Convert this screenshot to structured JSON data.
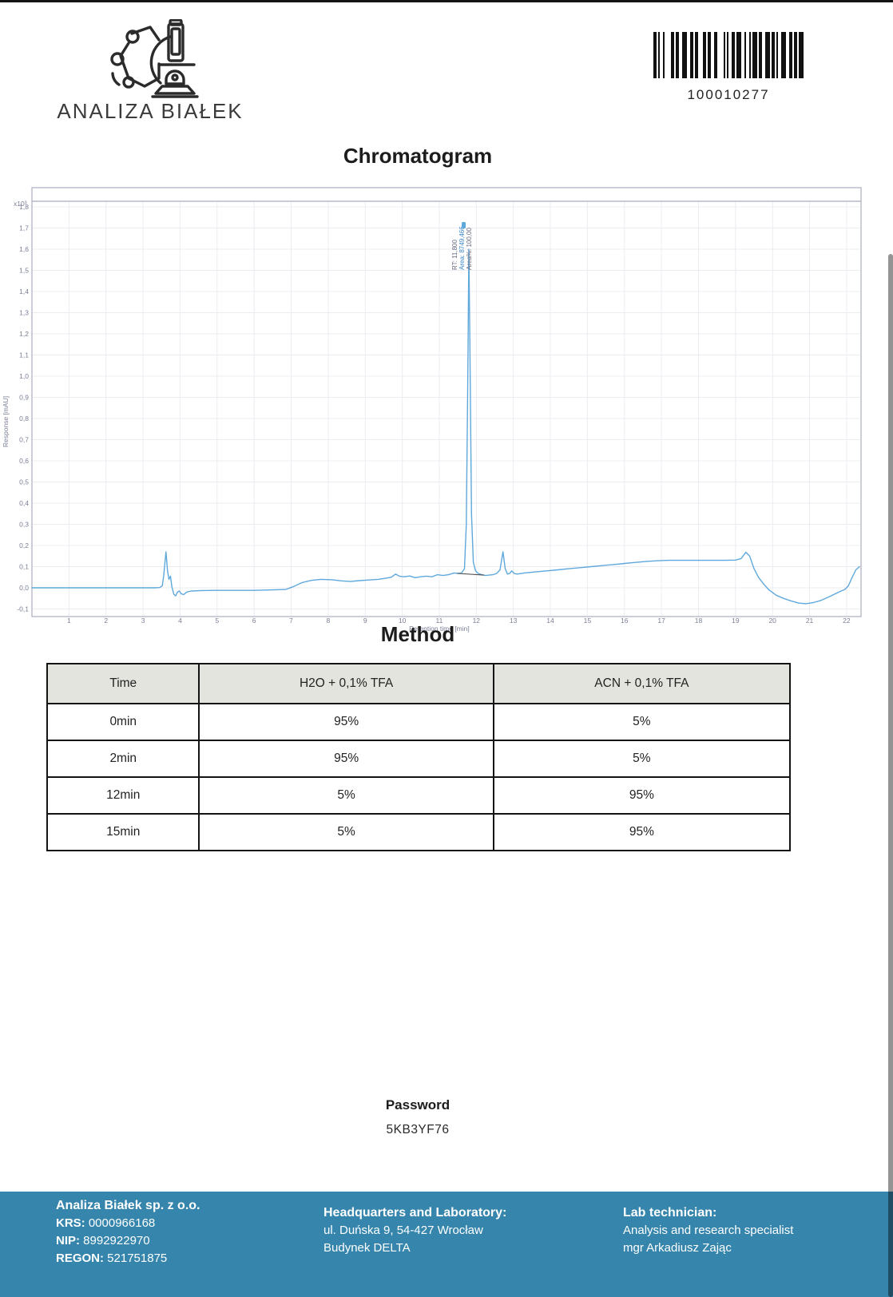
{
  "colors": {
    "trace_blue": "#5fa8dc",
    "frame_gray": "#a9adbd",
    "grid_gray": "#ebecf1",
    "tick_text": "#7a7e95",
    "footer_bg": "#3585ac",
    "table_header_bg": "#e4e4df"
  },
  "logo": {
    "text": "ANALIZA BIAŁEK",
    "icon": "microscope-molecule-icon"
  },
  "barcode": {
    "value": "100010277",
    "pattern": "1101001000011011001110011011000110110011000010100110111001001011101100111011010011100110110111"
  },
  "chart_data": {
    "type": "line",
    "title": "Chromatogram",
    "xlabel": "Retention time [min]",
    "ylabel": "Response [mAU]",
    "y_multiplier_label": "x10³",
    "xlim": [
      0,
      22.4
    ],
    "ylim": [
      -0.13,
      1.83
    ],
    "grid": true,
    "legend_position": "none",
    "x_ticks": [
      1,
      2,
      3,
      4,
      5,
      6,
      7,
      8,
      9,
      10,
      11,
      12,
      13,
      14,
      15,
      16,
      17,
      18,
      19,
      20,
      21,
      22
    ],
    "y_ticks": [
      1.8,
      1.7,
      1.6,
      1.5,
      1.4,
      1.3,
      1.2,
      1.1,
      1.0,
      0.9,
      0.8,
      0.7,
      0.6,
      0.5,
      0.4,
      0.3,
      0.2,
      0.1,
      0.0,
      -0.1
    ],
    "peak_annotation": {
      "x": 11.8,
      "lines": [
        "RT: 11,800",
        "Area: 8749,466",
        "Area%: 100,00"
      ],
      "line_colors": [
        "#63677d",
        "#3a86c8",
        "#63677d"
      ]
    },
    "series": [
      {
        "name": "signal",
        "color": "#5fa8dc",
        "width": 1.4,
        "points": [
          [
            0,
            0
          ],
          [
            0.5,
            0
          ],
          [
            1,
            0
          ],
          [
            1.5,
            0
          ],
          [
            2,
            0
          ],
          [
            2.5,
            0
          ],
          [
            3,
            0
          ],
          [
            3.3,
            0
          ],
          [
            3.45,
            0.001
          ],
          [
            3.52,
            0.01
          ],
          [
            3.56,
            0.06
          ],
          [
            3.62,
            0.17
          ],
          [
            3.66,
            0.08
          ],
          [
            3.7,
            0.04
          ],
          [
            3.74,
            0.055
          ],
          [
            3.78,
            0.005
          ],
          [
            3.83,
            -0.03
          ],
          [
            3.88,
            -0.038
          ],
          [
            3.93,
            -0.02
          ],
          [
            3.98,
            -0.015
          ],
          [
            4.03,
            -0.028
          ],
          [
            4.1,
            -0.032
          ],
          [
            4.18,
            -0.02
          ],
          [
            4.3,
            -0.015
          ],
          [
            4.6,
            -0.013
          ],
          [
            5,
            -0.012
          ],
          [
            5.5,
            -0.012
          ],
          [
            6,
            -0.012
          ],
          [
            6.5,
            -0.01
          ],
          [
            6.85,
            -0.008
          ],
          [
            7.05,
            0.005
          ],
          [
            7.3,
            0.025
          ],
          [
            7.55,
            0.035
          ],
          [
            7.8,
            0.04
          ],
          [
            8.1,
            0.038
          ],
          [
            8.35,
            0.033
          ],
          [
            8.6,
            0.03
          ],
          [
            8.85,
            0.034
          ],
          [
            9.1,
            0.037
          ],
          [
            9.35,
            0.04
          ],
          [
            9.55,
            0.045
          ],
          [
            9.7,
            0.05
          ],
          [
            9.82,
            0.065
          ],
          [
            9.92,
            0.055
          ],
          [
            10.05,
            0.052
          ],
          [
            10.2,
            0.056
          ],
          [
            10.35,
            0.048
          ],
          [
            10.5,
            0.052
          ],
          [
            10.65,
            0.055
          ],
          [
            10.8,
            0.052
          ],
          [
            10.95,
            0.062
          ],
          [
            11.1,
            0.058
          ],
          [
            11.25,
            0.062
          ],
          [
            11.4,
            0.07
          ],
          [
            11.5,
            0.068
          ],
          [
            11.6,
            0.07
          ],
          [
            11.68,
            0.09
          ],
          [
            11.73,
            0.3
          ],
          [
            11.77,
            1.0
          ],
          [
            11.8,
            1.6
          ],
          [
            11.83,
            1.1
          ],
          [
            11.87,
            0.35
          ],
          [
            11.92,
            0.12
          ],
          [
            11.98,
            0.08
          ],
          [
            12.05,
            0.068
          ],
          [
            12.15,
            0.062
          ],
          [
            12.25,
            0.058
          ],
          [
            12.35,
            0.06
          ],
          [
            12.45,
            0.062
          ],
          [
            12.55,
            0.068
          ],
          [
            12.64,
            0.085
          ],
          [
            12.72,
            0.17
          ],
          [
            12.78,
            0.09
          ],
          [
            12.84,
            0.065
          ],
          [
            12.9,
            0.068
          ],
          [
            12.96,
            0.08
          ],
          [
            13.02,
            0.068
          ],
          [
            13.1,
            0.065
          ],
          [
            13.3,
            0.07
          ],
          [
            13.6,
            0.075
          ],
          [
            13.9,
            0.08
          ],
          [
            14.2,
            0.085
          ],
          [
            14.5,
            0.09
          ],
          [
            14.8,
            0.095
          ],
          [
            15.1,
            0.1
          ],
          [
            15.4,
            0.105
          ],
          [
            15.7,
            0.11
          ],
          [
            16,
            0.115
          ],
          [
            16.3,
            0.12
          ],
          [
            16.6,
            0.125
          ],
          [
            16.9,
            0.128
          ],
          [
            17.2,
            0.13
          ],
          [
            17.5,
            0.13
          ],
          [
            17.8,
            0.13
          ],
          [
            18.1,
            0.13
          ],
          [
            18.4,
            0.13
          ],
          [
            18.7,
            0.13
          ],
          [
            19,
            0.131
          ],
          [
            19.15,
            0.138
          ],
          [
            19.28,
            0.168
          ],
          [
            19.38,
            0.15
          ],
          [
            19.5,
            0.09
          ],
          [
            19.62,
            0.05
          ],
          [
            19.75,
            0.02
          ],
          [
            19.9,
            -0.01
          ],
          [
            20.1,
            -0.035
          ],
          [
            20.3,
            -0.05
          ],
          [
            20.5,
            -0.062
          ],
          [
            20.7,
            -0.072
          ],
          [
            20.9,
            -0.075
          ],
          [
            21.1,
            -0.07
          ],
          [
            21.3,
            -0.06
          ],
          [
            21.5,
            -0.045
          ],
          [
            21.7,
            -0.028
          ],
          [
            21.85,
            -0.015
          ],
          [
            21.95,
            -0.008
          ],
          [
            22.05,
            0.01
          ],
          [
            22.15,
            0.05
          ],
          [
            22.25,
            0.085
          ],
          [
            22.35,
            0.1
          ]
        ]
      },
      {
        "name": "integration-baseline",
        "color": "#4d4d4d",
        "width": 1.1,
        "points": [
          [
            11.5,
            0.068
          ],
          [
            12.2,
            0.06
          ]
        ]
      }
    ]
  },
  "method": {
    "title": "Method",
    "headers": [
      "Time",
      "H2O + 0,1% TFA",
      "ACN + 0,1% TFA"
    ],
    "rows": [
      [
        "0min",
        "95%",
        "5%"
      ],
      [
        "2min",
        "95%",
        "5%"
      ],
      [
        "12min",
        "5%",
        "95%"
      ],
      [
        "15min",
        "5%",
        "95%"
      ]
    ]
  },
  "password": {
    "label": "Password",
    "value": "5KB3YF76"
  },
  "footer": {
    "company": {
      "name": "Analiza Białek sp. z o.o.",
      "krs_label": "KRS:",
      "krs": "0000966168",
      "nip_label": "NIP:",
      "nip": "8992922970",
      "regon_label": "REGON:",
      "regon": "521751875"
    },
    "headquarters": {
      "heading": "Headquarters and Laboratory:",
      "line1": "ul. Duńska 9, 54-427 Wrocław",
      "line2": "Budynek DELTA"
    },
    "technician": {
      "heading": "Lab technician:",
      "line1": "Analysis and research specialist",
      "line2": "mgr Arkadiusz Zając"
    }
  }
}
